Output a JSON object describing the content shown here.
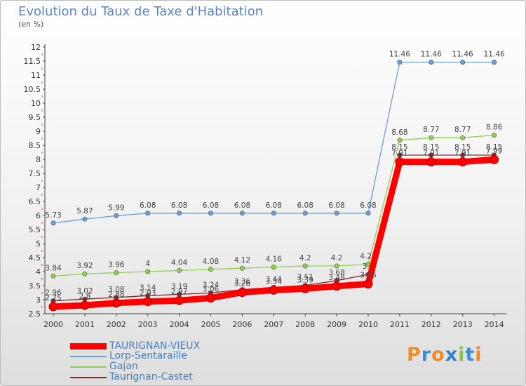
{
  "page": {
    "title": "Evolution du Taux de Taxe d'Habitation",
    "subtitle": "(en %)"
  },
  "legend": [
    {
      "label": "TAURIGNAN-VIEUX",
      "color": "#ff0000"
    },
    {
      "label": "Lorp-Sentaraille",
      "color": "#6a9fd4"
    },
    {
      "label": "Gajan",
      "color": "#8fd14f"
    },
    {
      "label": "Taurignan-Castet",
      "color": "#7a2a2a"
    }
  ],
  "logo": {
    "text": "Proxiti"
  },
  "chart_data": {
    "type": "line",
    "title": "Evolution du Taux de Taxe d'Habitation",
    "ylabel": "(en %)",
    "x": [
      "2000",
      "2001",
      "2002",
      "2003",
      "2004",
      "2005",
      "2006",
      "2007",
      "2008",
      "2009",
      "2010",
      "2011",
      "2012",
      "2013",
      "2014"
    ],
    "ylim": [
      2.5,
      12
    ],
    "yticks": [
      "2.5",
      "3",
      "3.5",
      "4",
      "4.5",
      "5",
      "5.5",
      "6",
      "6.5",
      "7",
      "7.5",
      "8",
      "8.5",
      "9",
      "9.5",
      "10",
      "10.5",
      "11",
      "11.5",
      "12"
    ],
    "grid": false,
    "series": [
      {
        "name": "Lorp-Sentaraille",
        "color": "#6a9fd4",
        "values": [
          5.73,
          5.87,
          5.99,
          6.08,
          6.08,
          6.08,
          6.08,
          6.08,
          6.08,
          6.08,
          6.08,
          11.46,
          11.46,
          11.46,
          11.46
        ],
        "labels": [
          "5.73",
          "5.87",
          "5.99",
          "6.08",
          "6.08",
          "6.08",
          "6.08",
          "6.08",
          "6.08",
          "6.08",
          "6.08",
          "11.46",
          "11.46",
          "11.46",
          "11.46"
        ]
      },
      {
        "name": "Gajan",
        "color": "#8fd14f",
        "values": [
          3.84,
          3.92,
          3.96,
          4.0,
          4.04,
          4.08,
          4.12,
          4.16,
          4.2,
          4.2,
          4.26,
          8.68,
          8.77,
          8.77,
          8.86
        ],
        "labels": [
          "3.84",
          "3.92",
          "3.96",
          "4",
          "4.04",
          "4.08",
          "4.12",
          "4.16",
          "4.2",
          "4.2",
          "4.26",
          "8.68",
          "8.77",
          "8.77",
          "8.86"
        ]
      },
      {
        "name": "Taurignan-Castet",
        "color": "#7a2a2a",
        "values": [
          2.96,
          3.02,
          3.08,
          3.14,
          3.19,
          3.24,
          3.36,
          3.44,
          3.51,
          3.68,
          3.9,
          8.15,
          8.15,
          8.15,
          8.15
        ],
        "labels": [
          "2.96",
          "3.02",
          "3.08",
          "3.14",
          "3.19",
          "3.24",
          "3.36",
          "3.44",
          "3.51",
          "3.68",
          "3.9",
          "8.15",
          "8.15",
          "8.15",
          "8.15"
        ]
      },
      {
        "name": "TAURIGNAN-VIEUX",
        "color": "#ff0000",
        "values": [
          2.75,
          2.8,
          2.88,
          2.93,
          2.97,
          3.06,
          3.26,
          3.34,
          3.39,
          3.48,
          3.56,
          7.91,
          7.91,
          7.91,
          7.99
        ],
        "labels": [
          "2.75",
          "2.8",
          "2.88",
          "2.93",
          "2.97",
          "3.06",
          "3.26",
          "3.34",
          "3.39",
          "3.48",
          "3.56",
          "7.91",
          "7.91",
          "7.91",
          "7.99"
        ]
      }
    ]
  }
}
